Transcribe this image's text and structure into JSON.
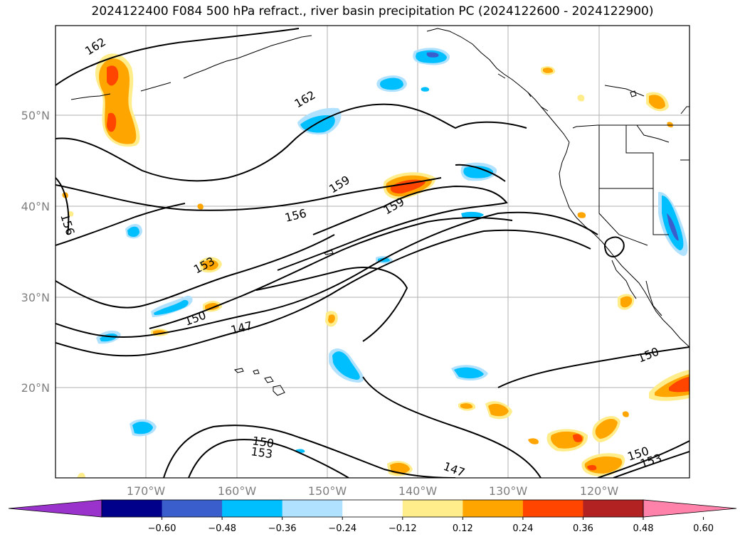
{
  "title": "2024122400 F084 500 hPa refract., river basin precipitation PC (2024122600 - 2024122900)",
  "map": {
    "lat_ticks": [
      "50°N",
      "40°N",
      "30°N",
      "20°N"
    ],
    "lon_ticks": [
      "170°W",
      "160°W",
      "150°W",
      "140°W",
      "130°W",
      "120°W"
    ],
    "contour_labels": [
      "162",
      "162",
      "159",
      "159",
      "156",
      "156",
      "153",
      "150",
      "147",
      "150",
      "150",
      "153",
      "147",
      "150",
      "153"
    ]
  },
  "colorbar": {
    "ticks": [
      "−0.60",
      "−0.48",
      "−0.36",
      "−0.24",
      "−0.12",
      "0.12",
      "0.24",
      "0.36",
      "0.48",
      "0.60"
    ],
    "colors": [
      "#9933cc",
      "#00008b",
      "#3a5fcd",
      "#00bfff",
      "#b0e2ff",
      "#ffffff",
      "#ffec8b",
      "#ffa500",
      "#ff4500",
      "#b22222",
      "#ff82ab"
    ]
  }
}
